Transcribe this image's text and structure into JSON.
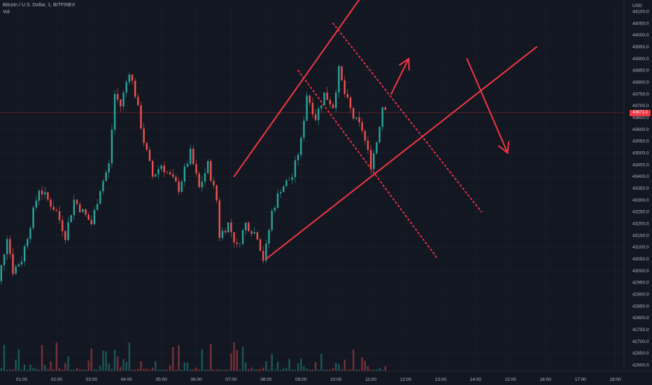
{
  "header": {
    "title": "Bitcoin / U.S. Dollar, 1, BITFINEX",
    "indicator": "Vol"
  },
  "price_axis": {
    "currency": "USD",
    "current_price_label": "43671.0"
  },
  "colors": {
    "background": "#131722",
    "up": "#26a69a",
    "down": "#ef5350",
    "drawing": "#f23645",
    "grid": "#1e222d"
  },
  "chart_data": {
    "type": "candlestick",
    "symbol": "BTCUSD",
    "interval": "1",
    "exchange": "BITFINEX",
    "ylim": [
      42575,
      44125
    ],
    "y_ticks": [
      44100,
      44050,
      44000,
      43950,
      43900,
      43850,
      43800,
      43750,
      43700,
      43650,
      43600,
      43550,
      43500,
      43450,
      43400,
      43350,
      43300,
      43250,
      43200,
      43150,
      43100,
      43050,
      43000,
      42950,
      42900,
      42850,
      42800,
      42750,
      42700,
      42650,
      42600
    ],
    "x_ticks": [
      "01:00",
      "02:00",
      "03:00",
      "04:00",
      "05:00",
      "06:00",
      "07:00",
      "08:00",
      "09:00",
      "10:00",
      "11:00",
      "12:00",
      "13:00",
      "14:00",
      "15:00",
      "16:00",
      "17:00",
      "18:00"
    ],
    "price_path": [
      [
        "00:05",
        42800
      ],
      [
        "00:20",
        42950
      ],
      [
        "00:35",
        43150
      ],
      [
        "00:45",
        43000
      ],
      [
        "01:00",
        43050
      ],
      [
        "01:15",
        43200
      ],
      [
        "01:30",
        43350
      ],
      [
        "01:45",
        43300
      ],
      [
        "02:00",
        43250
      ],
      [
        "02:15",
        43150
      ],
      [
        "02:30",
        43300
      ],
      [
        "02:45",
        43250
      ],
      [
        "03:00",
        43200
      ],
      [
        "03:15",
        43350
      ],
      [
        "03:30",
        43450
      ],
      [
        "03:40",
        43750
      ],
      [
        "03:50",
        43700
      ],
      [
        "04:05",
        43850
      ],
      [
        "04:15",
        43750
      ],
      [
        "04:30",
        43550
      ],
      [
        "04:45",
        43400
      ],
      [
        "05:00",
        43450
      ],
      [
        "05:15",
        43400
      ],
      [
        "05:30",
        43350
      ],
      [
        "05:50",
        43500
      ],
      [
        "06:05",
        43350
      ],
      [
        "06:20",
        43450
      ],
      [
        "06:35",
        43300
      ],
      [
        "06:40",
        43150
      ],
      [
        "06:55",
        43200
      ],
      [
        "07:10",
        43100
      ],
      [
        "07:25",
        43200
      ],
      [
        "07:45",
        43150
      ],
      [
        "07:55",
        43050
      ],
      [
        "08:00",
        43100
      ],
      [
        "08:10",
        43250
      ],
      [
        "08:25",
        43350
      ],
      [
        "08:45",
        43400
      ],
      [
        "09:00",
        43550
      ],
      [
        "09:10",
        43750
      ],
      [
        "09:25",
        43650
      ],
      [
        "09:40",
        43750
      ],
      [
        "09:55",
        43700
      ],
      [
        "10:05",
        43850
      ],
      [
        "10:15",
        43750
      ],
      [
        "10:30",
        43650
      ],
      [
        "10:45",
        43600
      ],
      [
        "11:00",
        43450
      ],
      [
        "11:10",
        43550
      ],
      [
        "11:20",
        43700
      ],
      [
        "11:30",
        43700
      ]
    ],
    "annotations": {
      "channel_upper": [
        [
          "07:05",
          43400
        ],
        [
          "10:40",
          44150
        ]
      ],
      "channel_lower": [
        [
          "08:00",
          43050
        ],
        [
          "15:45",
          43950
        ]
      ],
      "dotted_upper": [
        [
          "09:55",
          44050
        ],
        [
          "14:10",
          43250
        ]
      ],
      "dotted_lower": [
        [
          "08:55",
          43850
        ],
        [
          "12:55",
          43050
        ]
      ],
      "arrow_up": [
        [
          "11:35",
          43750
        ],
        [
          "12:05",
          43900
        ]
      ],
      "arrow_down": [
        [
          "13:45",
          43900
        ],
        [
          "14:55",
          43500
        ]
      ]
    }
  }
}
